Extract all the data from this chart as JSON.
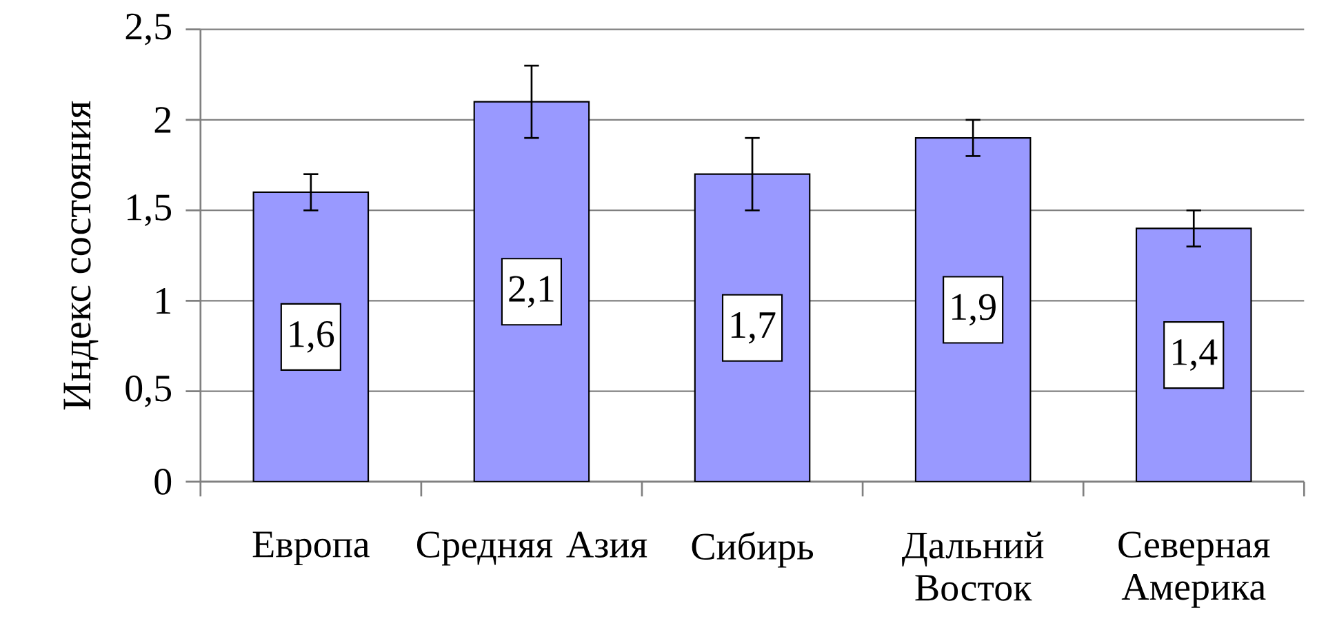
{
  "chart_data": {
    "type": "bar",
    "ylabel": "Индекс состояния",
    "categories": [
      "Европа",
      "Средняя Азия",
      "Сибирь",
      "Дальний Восток",
      "Северная Америка"
    ],
    "values": [
      1.6,
      2.1,
      1.7,
      1.9,
      1.4
    ],
    "errors": [
      0.1,
      0.2,
      0.2,
      0.1,
      0.1
    ],
    "value_labels": [
      "1,6",
      "2,1",
      "1,7",
      "1,9",
      "1,4"
    ],
    "color": "#9999ff",
    "ylim": [
      0,
      2.5
    ],
    "yticks": [
      0,
      {
        "value": 0.5,
        "label": "0,5"
      },
      1,
      {
        "value": 1.5,
        "label": "1,5"
      },
      2,
      {
        "value": 2.5,
        "label": "2,5"
      }
    ],
    "grid": "y",
    "legend": false
  }
}
